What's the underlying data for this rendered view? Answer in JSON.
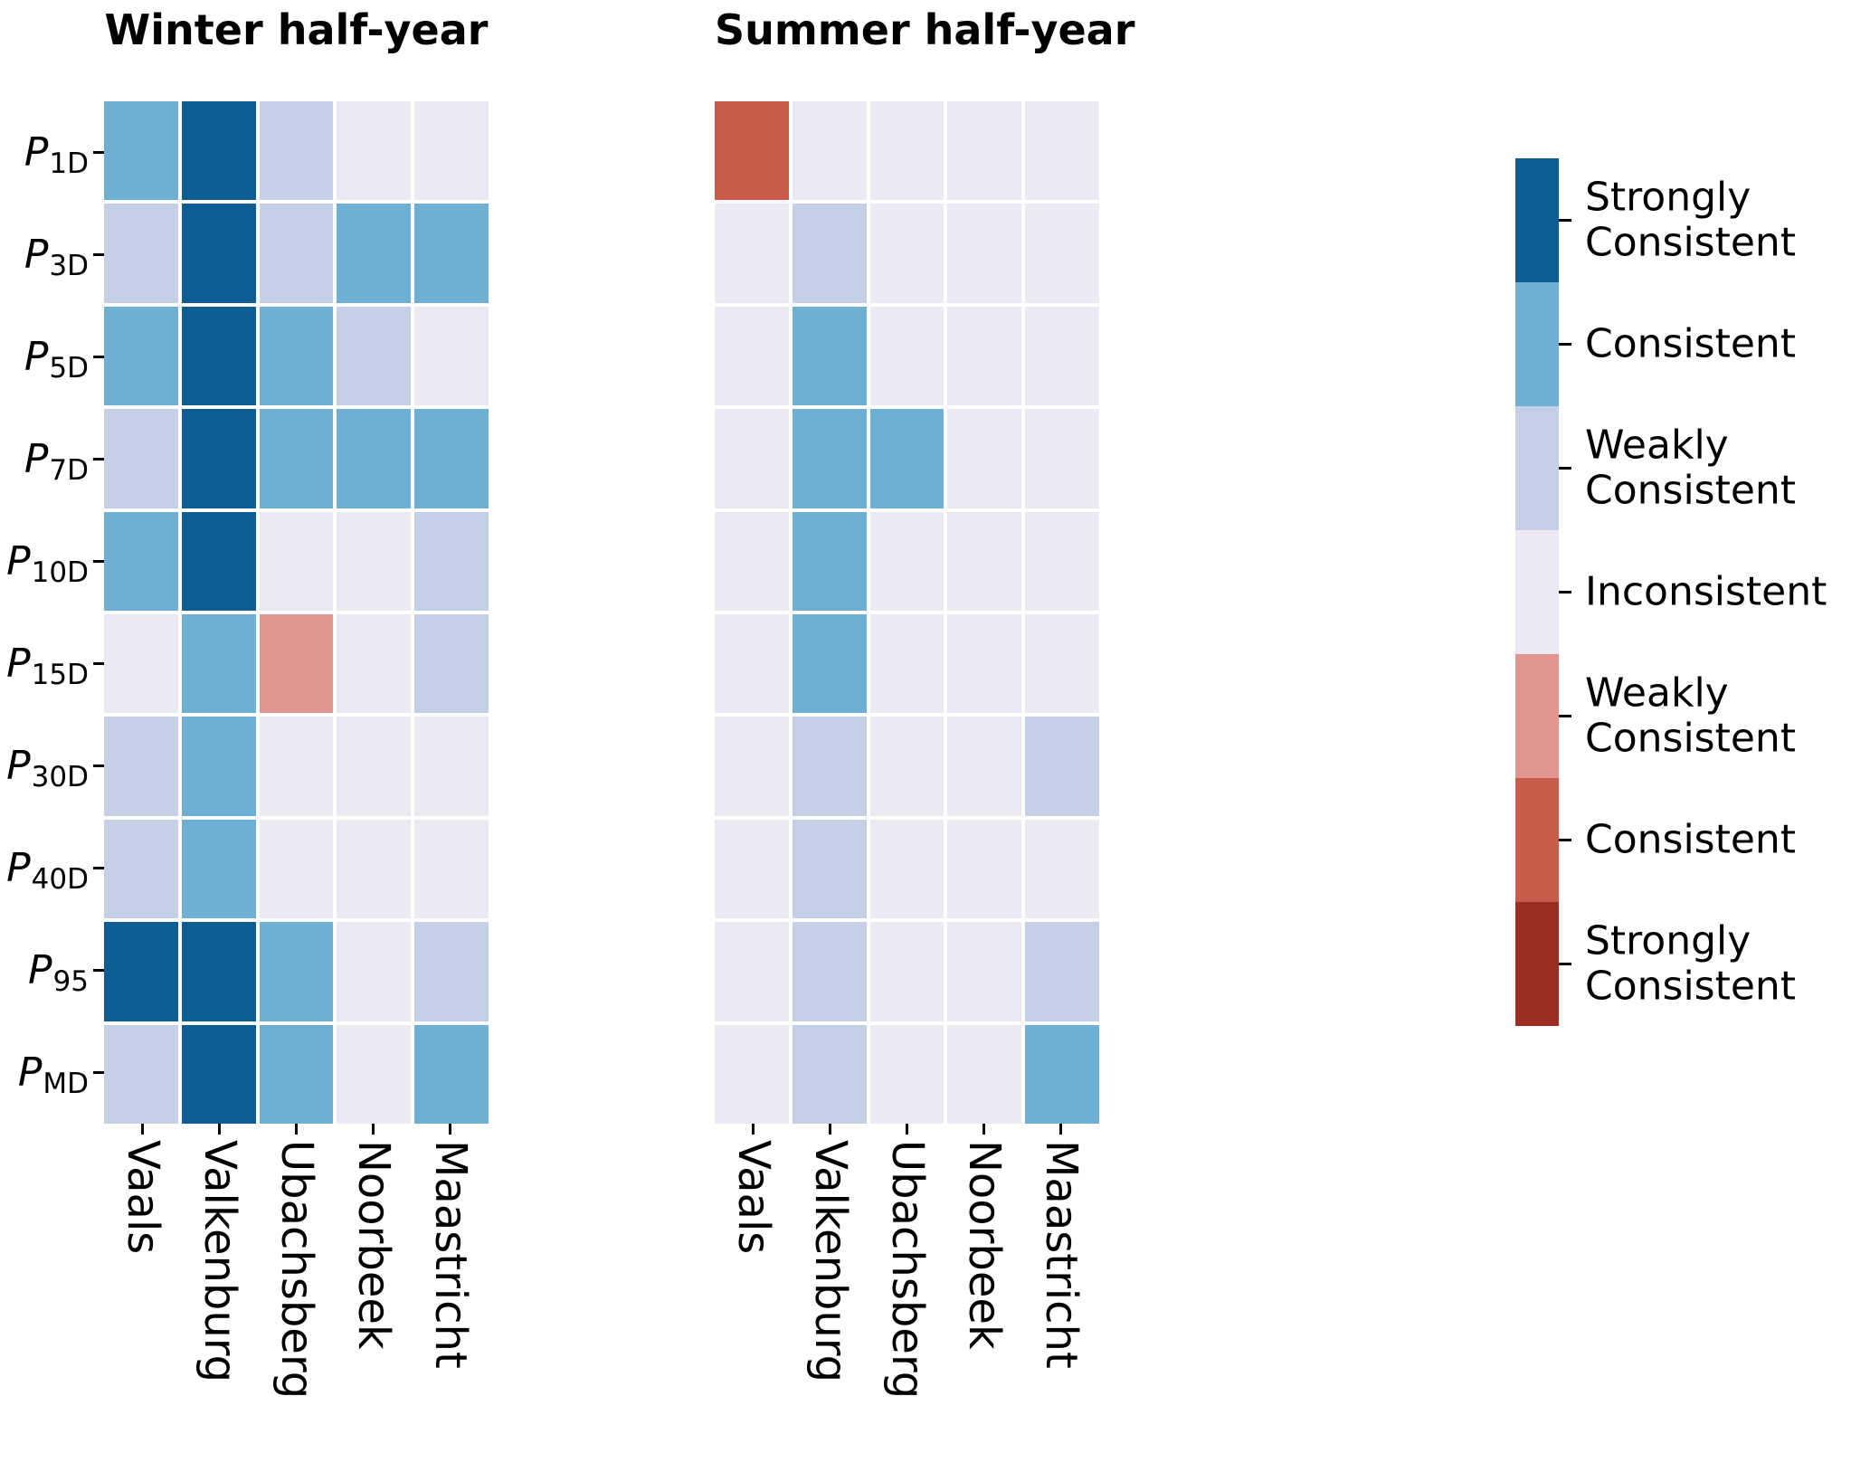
{
  "figure": {
    "background": "#ffffff"
  },
  "chart_data": {
    "type": "heatmap",
    "legend_position": "right",
    "grid": false,
    "panels": [
      {
        "title": "Winter half-year",
        "columns": [
          "Vaals",
          "Valkenburg",
          "Ubachsberg",
          "Noorbeek",
          "Maastricht"
        ],
        "values": [
          [
            2,
            3,
            1,
            0,
            0
          ],
          [
            1,
            3,
            1,
            2,
            2
          ],
          [
            2,
            3,
            2,
            1,
            0
          ],
          [
            1,
            3,
            2,
            2,
            2
          ],
          [
            2,
            3,
            0,
            0,
            1
          ],
          [
            0,
            2,
            -1,
            0,
            1
          ],
          [
            1,
            2,
            0,
            0,
            0
          ],
          [
            1,
            2,
            0,
            0,
            0
          ],
          [
            3,
            3,
            2,
            0,
            1
          ],
          [
            1,
            3,
            2,
            0,
            2
          ]
        ]
      },
      {
        "title": "Summer half-year",
        "columns": [
          "Vaals",
          "Valkenburg",
          "Ubachsberg",
          "Noorbeek",
          "Maastricht"
        ],
        "values": [
          [
            -2,
            0,
            0,
            0,
            0
          ],
          [
            0,
            1,
            0,
            0,
            0
          ],
          [
            0,
            2,
            0,
            0,
            0
          ],
          [
            0,
            2,
            2,
            0,
            0
          ],
          [
            0,
            2,
            0,
            0,
            0
          ],
          [
            0,
            2,
            0,
            0,
            0
          ],
          [
            0,
            1,
            0,
            0,
            1
          ],
          [
            0,
            1,
            0,
            0,
            0
          ],
          [
            0,
            1,
            0,
            0,
            1
          ],
          [
            0,
            1,
            0,
            0,
            2
          ]
        ]
      }
    ],
    "rows": [
      {
        "base": "P",
        "sub": "1D"
      },
      {
        "base": "P",
        "sub": "3D"
      },
      {
        "base": "P",
        "sub": "5D"
      },
      {
        "base": "P",
        "sub": "7D"
      },
      {
        "base": "P",
        "sub": "10D"
      },
      {
        "base": "P",
        "sub": "15D"
      },
      {
        "base": "P",
        "sub": "30D"
      },
      {
        "base": "P",
        "sub": "40D"
      },
      {
        "base": "P",
        "sub": "95"
      },
      {
        "base": "P",
        "sub": "MD"
      }
    ],
    "scale": {
      "levels": [
        {
          "value": 3,
          "label": "Strongly Consistent",
          "color": "#0d5c93"
        },
        {
          "value": 2,
          "label": "Consistent",
          "color": "#6fafd4"
        },
        {
          "value": 1,
          "label": "Weakly Consistent",
          "color": "#c5cfe6"
        },
        {
          "value": 0,
          "label": "Inconsistent",
          "color": "#ece9f2"
        },
        {
          "value": -1,
          "label": "Weakly Consistent",
          "color": "#e09590"
        },
        {
          "value": -2,
          "label": "Consistent",
          "color": "#c85b4c"
        },
        {
          "value": -3,
          "label": "Strongly Consistent",
          "color": "#9c2d21"
        }
      ],
      "legend_labels": [
        {
          "value": 3,
          "lines": [
            "Strongly",
            "Consistent"
          ]
        },
        {
          "value": 2,
          "lines": [
            "Consistent"
          ]
        },
        {
          "value": 1,
          "lines": [
            "Weakly",
            "Consistent"
          ]
        },
        {
          "value": 0,
          "lines": [
            "Inconsistent"
          ]
        },
        {
          "value": -1,
          "lines": [
            "Weakly",
            "Consistent"
          ]
        },
        {
          "value": -2,
          "lines": [
            "Consistent"
          ]
        },
        {
          "value": -3,
          "lines": [
            "Strongly",
            "Consistent"
          ]
        }
      ]
    }
  }
}
